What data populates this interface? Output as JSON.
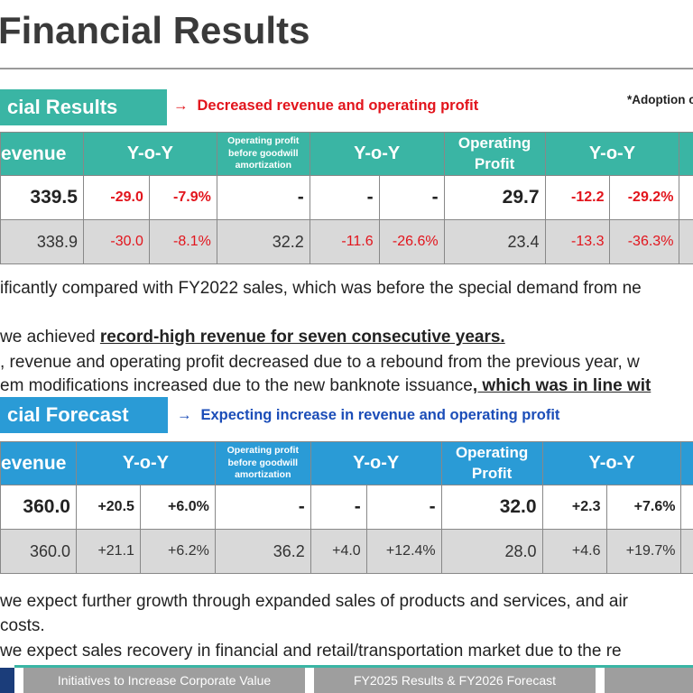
{
  "title": "Financial Results",
  "section1": {
    "header": "cial Results",
    "note": "Decreased revenue and operating profit",
    "adoption": "*Adoption o"
  },
  "table1": {
    "headers": {
      "revenue": "evenue",
      "yoy1": "Y-o-Y",
      "op_before_goodwill": "Operating profit before goodwill amortization",
      "yoy2": "Y-o-Y",
      "op_profit": "Operating Profit",
      "yoy3": "Y-o-Y"
    },
    "row1": [
      "339.5",
      "-29.0",
      "-7.9%",
      "-",
      "-",
      "-",
      "29.7",
      "-12.2",
      "-29.2%"
    ],
    "row2": [
      "338.9",
      "-30.0",
      "-8.1%",
      "32.2",
      "-11.6",
      "-26.6%",
      "23.4",
      "-13.3",
      "-36.3%"
    ]
  },
  "paragraphs1": {
    "line1": "ificantly compared with FY2022 sales, which was before the special demand from ne",
    "line2_pre": " we achieved ",
    "line2_bold": "record-high revenue for seven consecutive years.",
    "line3": ", revenue and operating profit decreased due to a rebound from the previous year, w",
    "line4_pre": "em modifications increased due to the new banknote issuance",
    "line4_bold": ", which was in line wit"
  },
  "section2": {
    "header": "cial Forecast",
    "note": "Expecting increase in revenue and operating profit"
  },
  "table2": {
    "headers": {
      "revenue": "evenue",
      "yoy1": "Y-o-Y",
      "op_before_goodwill": "Operating profit before goodwill amortization",
      "yoy2": "Y-o-Y",
      "op_profit": "Operating Profit",
      "yoy3": "Y-o-Y"
    },
    "row1": [
      "360.0",
      "+20.5",
      "+6.0%",
      "-",
      "-",
      "-",
      "32.0",
      "+2.3",
      "+7.6%"
    ],
    "row2": [
      "360.0",
      "+21.1",
      "+6.2%",
      "36.2",
      "+4.0",
      "+12.4%",
      "28.0",
      "+4.6",
      "+19.7%"
    ]
  },
  "paragraphs2": {
    "line1": " we expect further growth through expanded sales of products and services, and air",
    "line2": " costs.",
    "line3": " we expect sales recovery in financial and retail/transportation market due to the re"
  },
  "footer": {
    "tab1": "Initiatives to Increase Corporate Value",
    "tab2": "FY2025 Results & FY2026 Forecast",
    "tab3": ""
  },
  "colors": {
    "teal": "#3ab5a4",
    "blue": "#2a9bd6",
    "red_text": "#e2141c",
    "blue_text": "#1b4db8",
    "row_gray": "#d9d9d9"
  },
  "icons": [
    "right-arrow-icon"
  ]
}
